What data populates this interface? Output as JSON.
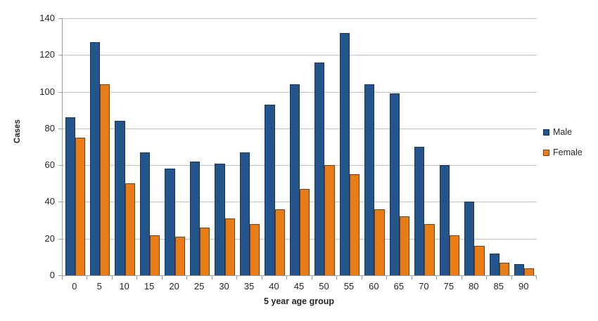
{
  "chart_data": {
    "type": "bar",
    "title": "",
    "xlabel": "5 year age group",
    "ylabel": "Cases",
    "ylim": [
      0,
      140
    ],
    "ytick_step": 20,
    "grid": true,
    "legend_position": "right",
    "categories": [
      "0",
      "5",
      "10",
      "15",
      "20",
      "25",
      "30",
      "35",
      "40",
      "45",
      "50",
      "55",
      "60",
      "65",
      "70",
      "75",
      "80",
      "85",
      "90"
    ],
    "series": [
      {
        "name": "Male",
        "color": "#24548c",
        "border_color": "#17375e",
        "values": [
          86,
          127,
          84,
          67,
          58,
          62,
          61,
          67,
          93,
          104,
          116,
          132,
          104,
          99,
          70,
          60,
          40,
          12,
          6
        ]
      },
      {
        "name": "Female",
        "color": "#e87d17",
        "border_color": "#7f4012",
        "values": [
          75,
          104,
          50,
          22,
          21,
          26,
          31,
          28,
          36,
          47,
          60,
          55,
          36,
          32,
          28,
          22,
          16,
          7,
          4
        ]
      }
    ]
  },
  "colors": {
    "gridline": "#c3c3c3",
    "axis": "#9e9e9e",
    "text": "#262626"
  }
}
